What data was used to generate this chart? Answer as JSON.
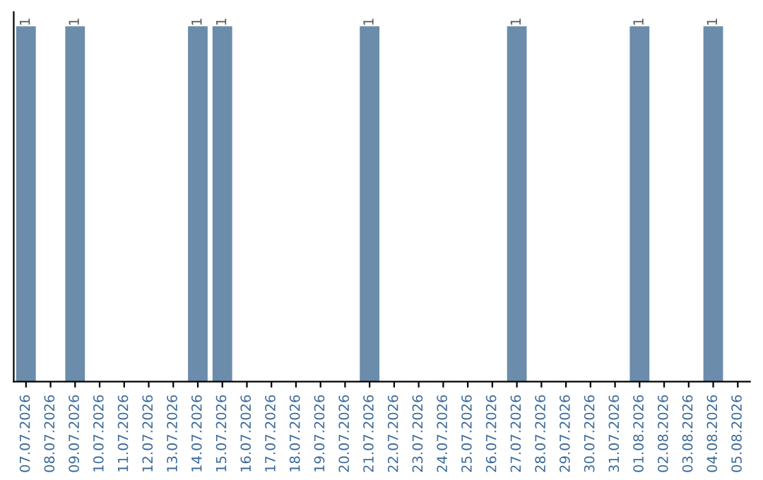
{
  "chart_data": {
    "type": "bar",
    "categories": [
      "07.07.2026",
      "08.07.2026",
      "09.07.2026",
      "10.07.2026",
      "11.07.2026",
      "12.07.2026",
      "13.07.2026",
      "14.07.2026",
      "15.07.2026",
      "16.07.2026",
      "17.07.2026",
      "18.07.2026",
      "19.07.2026",
      "20.07.2026",
      "21.07.2026",
      "22.07.2026",
      "23.07.2026",
      "24.07.2026",
      "25.07.2026",
      "26.07.2026",
      "27.07.2026",
      "28.07.2026",
      "29.07.2026",
      "30.07.2026",
      "31.07.2026",
      "01.08.2026",
      "02.08.2026",
      "03.08.2026",
      "04.08.2026",
      "05.08.2026"
    ],
    "values": [
      1,
      0,
      1,
      0,
      0,
      0,
      0,
      1,
      1,
      0,
      0,
      0,
      0,
      0,
      1,
      0,
      0,
      0,
      0,
      0,
      1,
      0,
      0,
      0,
      0,
      1,
      0,
      0,
      1,
      0
    ],
    "value_labels": [
      "1",
      null,
      "1",
      null,
      null,
      null,
      null,
      "1",
      "1",
      null,
      null,
      null,
      null,
      null,
      "1",
      null,
      null,
      null,
      null,
      null,
      "1",
      null,
      null,
      null,
      null,
      "1",
      null,
      null,
      "1",
      null
    ],
    "color": "#6b8caa",
    "tick_labels": "x",
    "grid": false,
    "legend": false
  }
}
